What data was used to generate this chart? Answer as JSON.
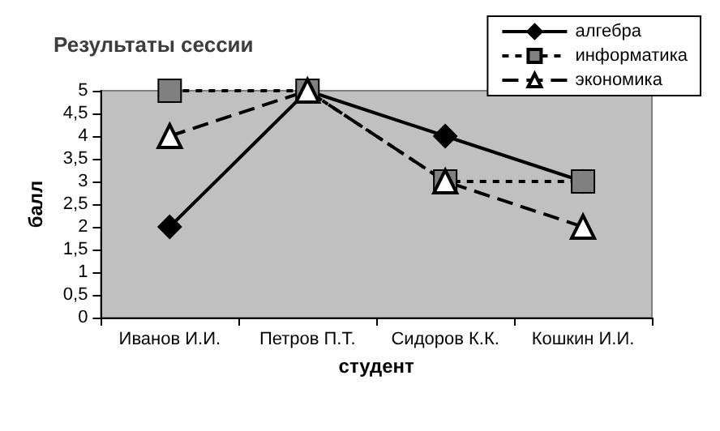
{
  "chart_data": {
    "type": "line",
    "title": "Результаты сессии",
    "xlabel": "студент",
    "ylabel": "балл",
    "categories": [
      "Иванов И.И.",
      "Петров П.Т.",
      "Сидоров К.К.",
      "Кошкин И.И."
    ],
    "series": [
      {
        "name": "алгебра",
        "color": "#000000",
        "values": [
          2,
          5,
          4,
          3
        ],
        "marker": "diamond",
        "line_style": "solid"
      },
      {
        "name": "информатика",
        "color": "#808080",
        "values": [
          5,
          5,
          3,
          3
        ],
        "marker": "square",
        "line_style": "dotted"
      },
      {
        "name": "экономика",
        "color": "#000000",
        "values": [
          4,
          5,
          3,
          2
        ],
        "marker": "triangle",
        "line_style": "dashed"
      }
    ],
    "ylim": [
      0,
      5
    ],
    "yticks": [
      0,
      {
        "value": 0.5,
        "label": "0,5"
      },
      1,
      {
        "value": 1.5,
        "label": "1,5"
      },
      2,
      {
        "value": 2.5,
        "label": "2,5"
      },
      3,
      {
        "value": 3.5,
        "label": "3,5"
      },
      4,
      {
        "value": 4.5,
        "label": "4,5"
      },
      5
    ],
    "grid": false,
    "legend": "top right"
  }
}
